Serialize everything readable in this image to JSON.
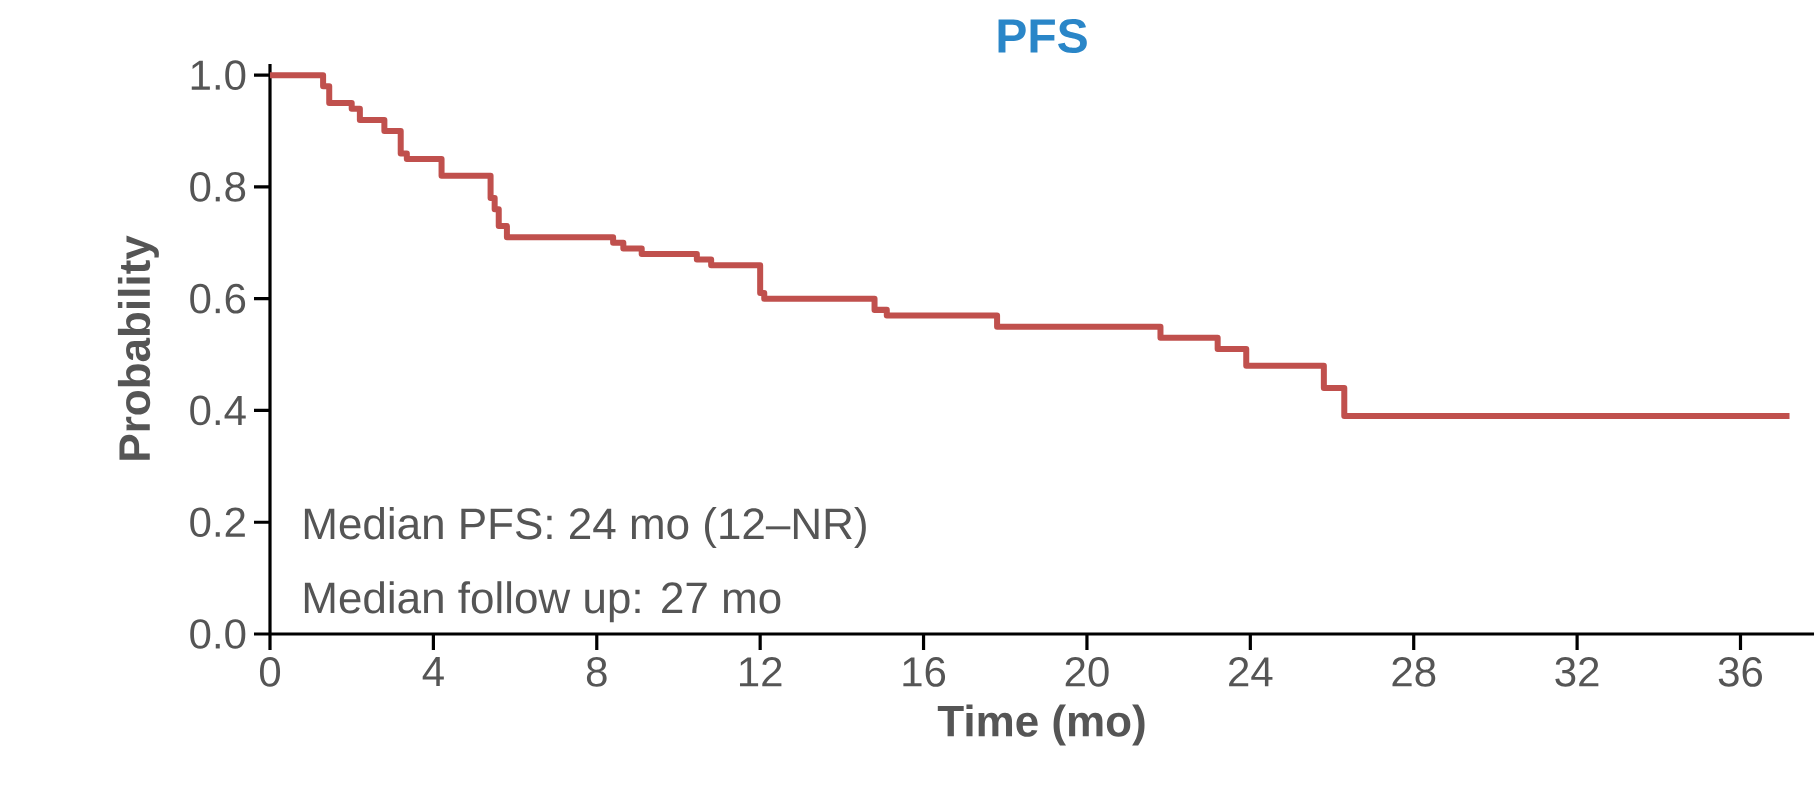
{
  "chart_data": {
    "type": "step",
    "title": "PFS",
    "xlabel": "Time (mo)",
    "ylabel": "Probability",
    "x": [
      0,
      1.3,
      1.45,
      2.0,
      2.2,
      2.8,
      3.2,
      3.35,
      4.2,
      5.4,
      5.5,
      5.6,
      5.8,
      8.4,
      8.65,
      9.1,
      10.45,
      10.8,
      12.0,
      12.1,
      14.8,
      15.1,
      17.8,
      21.8,
      23.2,
      23.9,
      25.8,
      26.3,
      37.2
    ],
    "series": [
      {
        "color": "#c0504d",
        "values": [
          1.0,
          0.98,
          0.95,
          0.94,
          0.92,
          0.9,
          0.86,
          0.85,
          0.82,
          0.78,
          0.76,
          0.73,
          0.71,
          0.7,
          0.69,
          0.68,
          0.67,
          0.66,
          0.61,
          0.6,
          0.58,
          0.57,
          0.55,
          0.53,
          0.51,
          0.48,
          0.44,
          0.39,
          0.39
        ]
      }
    ],
    "xlim": [
      0,
      37.8
    ],
    "ylim": [
      0,
      1.02
    ],
    "xticks": [
      0,
      4,
      8,
      12,
      16,
      20,
      24,
      28,
      32,
      36
    ],
    "yticks": [
      {
        "value": 0,
        "label": "0.0"
      },
      {
        "value": 0.2,
        "label": "0.2"
      },
      {
        "value": 0.4,
        "label": "0.4"
      },
      {
        "value": 0.6,
        "label": "0.6"
      },
      {
        "value": 0.8,
        "label": "0.8"
      },
      {
        "value": 1.0,
        "label": "1.0"
      }
    ],
    "annotations": [
      "Median PFS: 24 mo (12–NR)",
      "Median follow up: 27 mo"
    ],
    "grid": false
  }
}
